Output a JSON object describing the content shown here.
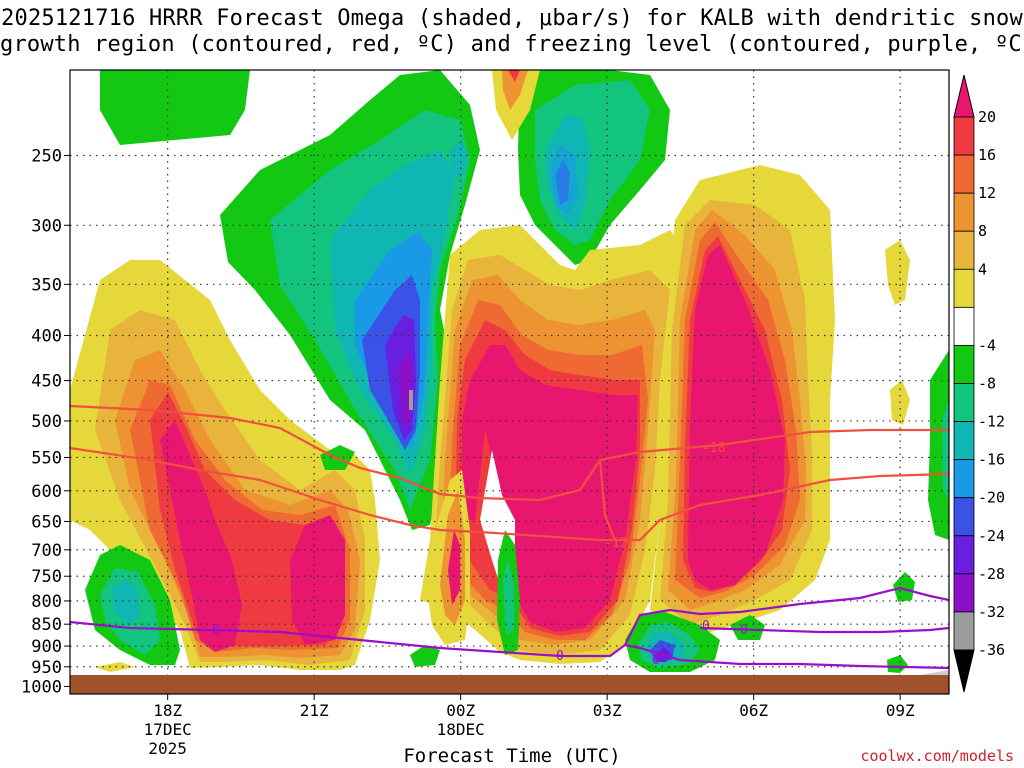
{
  "chart_data": {
    "type": "heatmap",
    "title_line1": "2025121716 HRRR Forecast Omega (shaded, μbar/s) for KALB with dendritic snow",
    "title_line2": "growth region (contoured, red, ºC) and freezing level (contoured, purple, ºC)",
    "xlabel": "Forecast Time (UTC)",
    "credit": "coolwx.com/models",
    "x_ticks": [
      {
        "h": 18,
        "lines": [
          "18Z",
          "17DEC",
          "2025"
        ]
      },
      {
        "h": 21,
        "lines": [
          "21Z"
        ]
      },
      {
        "h": 24,
        "lines": [
          "00Z",
          "18DEC"
        ]
      },
      {
        "h": 27,
        "lines": [
          "03Z"
        ]
      },
      {
        "h": 30,
        "lines": [
          "06Z"
        ]
      },
      {
        "h": 33,
        "lines": [
          "09Z"
        ]
      }
    ],
    "x_range_hours": [
      16,
      34
    ],
    "y_ticks": [
      250,
      300,
      350,
      400,
      450,
      500,
      550,
      600,
      650,
      700,
      750,
      800,
      850,
      900,
      950,
      1000
    ],
    "y_range_mb": [
      200,
      1020
    ],
    "colorbar": {
      "labels": [
        "20",
        "16",
        "12",
        "8",
        "4",
        "-4",
        "-8",
        "-12",
        "-16",
        "-20",
        "-24",
        "-28",
        "-32",
        "-36"
      ],
      "colors": [
        "#e8166f",
        "#f03a42",
        "#ef6a32",
        "#ee9332",
        "#e8b43c",
        "#e6d73a",
        "#ffffff",
        "#13c813",
        "#12c47e",
        "#10b6b4",
        "#1a9ae6",
        "#3a52e6",
        "#6a1ee0",
        "#8b10c8",
        "#9c9c9c",
        "#000000"
      ]
    },
    "contour_labels": {
      "dgz": [
        "-18",
        "-12"
      ],
      "freezing": [
        "0",
        "0",
        "0",
        "0",
        "0"
      ]
    },
    "levels": {
      "neg36": "#9c9c9c",
      "neg32": "#8b10c8",
      "neg28": "#6a1ee0",
      "neg24": "#3a52e6",
      "neg20": "#1a9ae6",
      "neg16": "#10b6b4",
      "neg12": "#12c47e",
      "neg8": "#13c813",
      "pos4": "#e6d73a",
      "pos8": "#e8b43c",
      "pos12": "#ee9332",
      "pos16": "#ef6a32",
      "pos20": "#f03a42",
      "pos24": "#e8166f"
    },
    "dgz_color": "#f05040",
    "freezing_color": "#9a10c8",
    "ground_color": "#a0522d"
  }
}
